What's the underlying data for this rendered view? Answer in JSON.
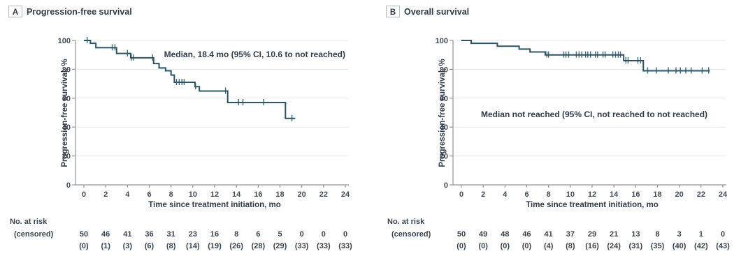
{
  "figure_type": "kaplan-meier-survival-figure",
  "chart_data": [
    {
      "type": "line",
      "style": "step",
      "panel_label": "A",
      "title": "Progression-free survival",
      "annotation": "Median, 18.4 mo (95% CI, 10.6 to not reached)",
      "xlabel": "Time since treatment initiation, mo",
      "ylabel": "Progression-free survival, %",
      "xlim": [
        0,
        24
      ],
      "ylim": [
        0,
        100
      ],
      "xticks": [
        0,
        2,
        4,
        6,
        8,
        10,
        12,
        14,
        16,
        18,
        20,
        22,
        24
      ],
      "yticks": [
        0,
        20,
        40,
        60,
        80,
        100
      ],
      "grid": "horizontal",
      "line_color": "#2a5363",
      "steps": [
        [
          0,
          100
        ],
        [
          0.6,
          98
        ],
        [
          1.1,
          95
        ],
        [
          3.0,
          91
        ],
        [
          4.3,
          88
        ],
        [
          6.4,
          84
        ],
        [
          6.9,
          81
        ],
        [
          7.5,
          79
        ],
        [
          8.0,
          76
        ],
        [
          8.3,
          71
        ],
        [
          10.2,
          68
        ],
        [
          10.6,
          65
        ],
        [
          13.2,
          57
        ],
        [
          18.5,
          46
        ]
      ],
      "curve_end": 19.4,
      "censor_marks": [
        [
          0.3,
          100
        ],
        [
          2.6,
          95
        ],
        [
          2.85,
          95
        ],
        [
          4.0,
          91
        ],
        [
          4.35,
          88
        ],
        [
          4.55,
          88
        ],
        [
          6.3,
          88
        ],
        [
          8.5,
          71
        ],
        [
          8.75,
          71
        ],
        [
          9.0,
          71
        ],
        [
          9.2,
          71
        ],
        [
          10.25,
          68
        ],
        [
          13.0,
          65
        ],
        [
          14.2,
          57
        ],
        [
          14.6,
          57
        ],
        [
          16.5,
          57
        ],
        [
          19.1,
          46
        ]
      ],
      "at_risk_header": "No. at risk",
      "censored_header": "(censored)",
      "at_risk": [
        50,
        46,
        41,
        36,
        31,
        23,
        16,
        8,
        6,
        5,
        0,
        0,
        0
      ],
      "censored_display": [
        "(0)",
        "(1)",
        "(3)",
        "(6)",
        "(8)",
        "(14)",
        "(19)",
        "(26)",
        "(28)",
        "(29)",
        "(33)",
        "(33)",
        "(33)"
      ]
    },
    {
      "type": "line",
      "style": "step",
      "panel_label": "B",
      "title": "Overall survival",
      "annotation": "Median not reached (95% CI, not reached to not reached)",
      "xlabel": "Time since treatment initiation, mo",
      "ylabel": "Progression-free survival, %",
      "xlim": [
        0,
        24
      ],
      "ylim": [
        0,
        100
      ],
      "xticks": [
        0,
        2,
        4,
        6,
        8,
        10,
        12,
        14,
        16,
        18,
        20,
        22,
        24
      ],
      "yticks": [
        0,
        20,
        40,
        60,
        80,
        100
      ],
      "grid": "horizontal",
      "line_color": "#2a5363",
      "steps": [
        [
          0,
          100
        ],
        [
          0.9,
          98
        ],
        [
          3.3,
          96
        ],
        [
          5.3,
          94
        ],
        [
          6.3,
          92
        ],
        [
          7.7,
          90
        ],
        [
          14.9,
          86
        ],
        [
          16.7,
          79
        ]
      ],
      "curve_end": 22.8,
      "censor_marks": [
        [
          7.85,
          90
        ],
        [
          8.0,
          90
        ],
        [
          9.4,
          90
        ],
        [
          9.6,
          90
        ],
        [
          9.85,
          90
        ],
        [
          10.55,
          90
        ],
        [
          10.8,
          90
        ],
        [
          11.05,
          90
        ],
        [
          11.4,
          90
        ],
        [
          11.6,
          90
        ],
        [
          11.85,
          90
        ],
        [
          12.3,
          90
        ],
        [
          12.5,
          90
        ],
        [
          13.0,
          90
        ],
        [
          13.2,
          90
        ],
        [
          13.9,
          90
        ],
        [
          14.15,
          90
        ],
        [
          14.4,
          90
        ],
        [
          14.6,
          90
        ],
        [
          15.1,
          86
        ],
        [
          15.3,
          86
        ],
        [
          16.2,
          86
        ],
        [
          16.45,
          86
        ],
        [
          17.1,
          79
        ],
        [
          17.9,
          79
        ],
        [
          19.0,
          79
        ],
        [
          19.7,
          79
        ],
        [
          20.1,
          79
        ],
        [
          20.6,
          79
        ],
        [
          21.1,
          79
        ],
        [
          22.1,
          79
        ],
        [
          22.7,
          79
        ]
      ],
      "at_risk_header": "No. at risk",
      "censored_header": "(censored)",
      "at_risk": [
        50,
        49,
        48,
        46,
        41,
        37,
        29,
        21,
        13,
        8,
        3,
        1,
        0
      ],
      "censored_display": [
        "(0)",
        "(0)",
        "(0)",
        "(0)",
        "(4)",
        "(8)",
        "(16)",
        "(24)",
        "(31)",
        "(35)",
        "(40)",
        "(42)",
        "(43)"
      ]
    }
  ],
  "colors": {
    "curve": "#2a5363",
    "text_dark": "#2f3b49",
    "text_tick": "#414b59",
    "axis": "#8e9499",
    "gridline": "#e6e6e6",
    "label_box_border": "#b3b8bd"
  }
}
